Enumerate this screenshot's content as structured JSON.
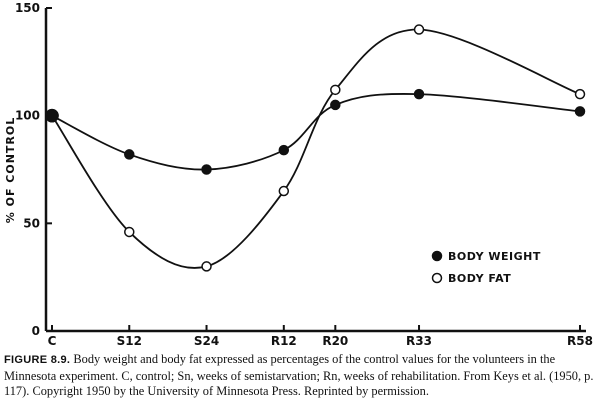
{
  "chart_data": {
    "type": "line",
    "title": "",
    "xlabel": "",
    "ylabel": "% OF CONTROL",
    "categories": [
      "C",
      "S12",
      "S24",
      "R12",
      "R20",
      "R33",
      "R58"
    ],
    "x": [
      0,
      12,
      24,
      36,
      44,
      57,
      82
    ],
    "ylim": [
      0,
      150
    ],
    "yticks": [
      0,
      50,
      100,
      150
    ],
    "grid": false,
    "legend_position": "lower-right",
    "series": [
      {
        "name": "BODY WEIGHT",
        "marker": "filled-circle",
        "values": [
          100,
          82,
          75,
          84,
          105,
          110,
          102
        ]
      },
      {
        "name": "BODY FAT",
        "marker": "open-circle",
        "values": [
          100,
          46,
          30,
          65,
          112,
          140,
          110
        ]
      }
    ]
  },
  "caption": {
    "label": "FIGURE 8.9.",
    "text": "Body weight and body fat expressed as percentages of the control values for the volunteers in the Minnesota experiment. C, control; Sn, weeks of semistarvation; Rn, weeks of rehabilitation. From Keys et al. (1950, p. 117). Copyright 1950 by the University of Minnesota Press. Reprinted by permission."
  },
  "colors": {
    "ink": "#111111",
    "background": "#ffffff"
  }
}
